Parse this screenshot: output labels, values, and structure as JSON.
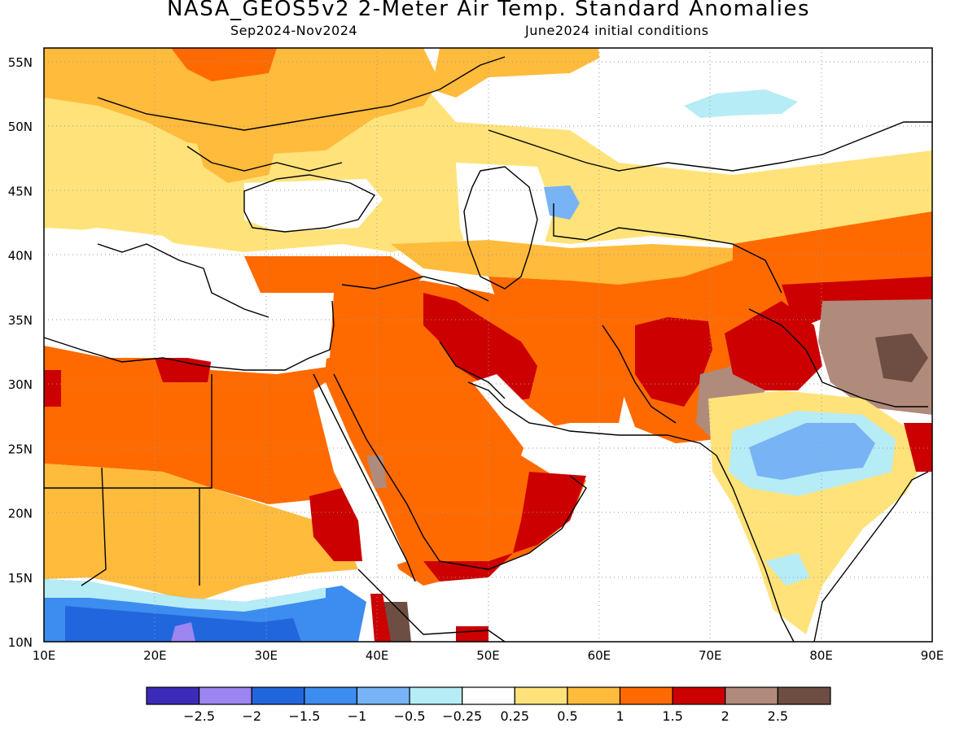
{
  "title": "NASA_GEOS5v2 2-Meter Air Temp. Standard Anomalies",
  "subtitle_left": "Sep2024-Nov2024",
  "subtitle_right": "June2024 initial conditions",
  "map": {
    "lon_range": [
      10,
      90
    ],
    "lat_range": [
      10,
      56
    ],
    "lon_ticks": [
      "10E",
      "20E",
      "30E",
      "40E",
      "50E",
      "60E",
      "70E",
      "80E",
      "90E"
    ],
    "lat_ticks": [
      "10N",
      "15N",
      "20N",
      "25N",
      "30N",
      "35N",
      "40N",
      "45N",
      "50N",
      "55N"
    ],
    "gridlines": "dotted"
  },
  "colorbar": {
    "colors": [
      "#3b2bb8",
      "#9c85f0",
      "#2266dd",
      "#3d8cf0",
      "#78b4f5",
      "#b6ecf5",
      "#ffffff",
      "#ffe37a",
      "#ffbb3c",
      "#ff6a00",
      "#cc0000",
      "#b08a7a",
      "#6e4e42"
    ],
    "labels": [
      "-2.5",
      "-2",
      "-1.5",
      "-1",
      "-0.5",
      "-0.25",
      "0.25",
      "0.5",
      "1",
      "1.5",
      "2",
      "2.5"
    ]
  },
  "palette": {
    "pale_yellow": "#ffe37a",
    "light_orange": "#ffbb3c",
    "orange": "#ff6a00",
    "red": "#cc0000",
    "brown": "#b08a7a",
    "dark_brown": "#6e4e42",
    "pale_blue": "#b6ecf5",
    "light_blue": "#78b4f5",
    "mid_blue": "#3d8cf0",
    "blue": "#2266dd",
    "lavender": "#9c85f0"
  }
}
